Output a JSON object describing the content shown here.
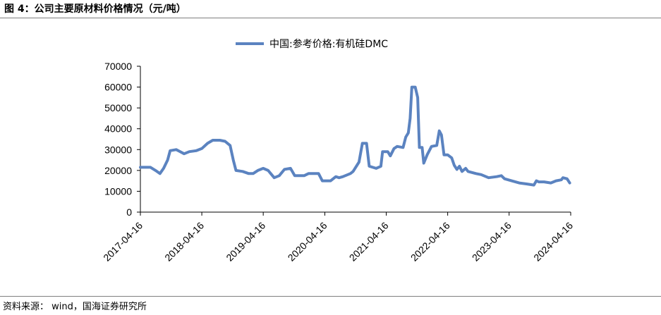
{
  "figure": {
    "title": "图 4：公司主要原材料价格情况（元/吨）",
    "source": "资料来源： wind，国海证券研究所"
  },
  "colors": {
    "series": "#5b83c0",
    "axis": "#000000",
    "rule": "#7f7f7f"
  },
  "chart_data": {
    "type": "line",
    "title": "",
    "xlabel": "",
    "ylabel": "",
    "ylim": [
      0,
      70000
    ],
    "yticks": [
      "0",
      "10000",
      "20000",
      "30000",
      "40000",
      "50000",
      "60000",
      "70000"
    ],
    "xlim": [
      "2017-04-16",
      "2024-04-16"
    ],
    "xticks": [
      "2017-04-16",
      "2018-04-16",
      "2019-04-16",
      "2020-04-16",
      "2021-04-16",
      "2022-04-16",
      "2023-04-16",
      "2024-04-16"
    ],
    "grid": false,
    "legend": "top-center",
    "series": [
      {
        "name": "中国:参考价格:有机硅DMC",
        "points": [
          [
            "2017-04-16",
            21500
          ],
          [
            "2017-06-15",
            21500
          ],
          [
            "2017-07-15",
            20000
          ],
          [
            "2017-08-10",
            18500
          ],
          [
            "2017-09-01",
            21000
          ],
          [
            "2017-09-25",
            25000
          ],
          [
            "2017-10-10",
            29500
          ],
          [
            "2017-11-15",
            30000
          ],
          [
            "2018-01-01",
            28000
          ],
          [
            "2018-02-01",
            29000
          ],
          [
            "2018-03-15",
            29500
          ],
          [
            "2018-04-16",
            30500
          ],
          [
            "2018-05-20",
            33000
          ],
          [
            "2018-06-20",
            34500
          ],
          [
            "2018-08-01",
            34500
          ],
          [
            "2018-09-01",
            34000
          ],
          [
            "2018-10-01",
            32000
          ],
          [
            "2018-10-20",
            25000
          ],
          [
            "2018-11-05",
            20000
          ],
          [
            "2018-12-15",
            19500
          ],
          [
            "2019-01-20",
            18500
          ],
          [
            "2019-02-15",
            18500
          ],
          [
            "2019-03-15",
            20000
          ],
          [
            "2019-04-16",
            21000
          ],
          [
            "2019-05-15",
            20000
          ],
          [
            "2019-06-20",
            16500
          ],
          [
            "2019-07-20",
            17500
          ],
          [
            "2019-08-20",
            20500
          ],
          [
            "2019-09-25",
            21000
          ],
          [
            "2019-10-20",
            17500
          ],
          [
            "2019-12-15",
            17500
          ],
          [
            "2020-01-10",
            18500
          ],
          [
            "2020-03-10",
            18500
          ],
          [
            "2020-04-01",
            15000
          ],
          [
            "2020-05-20",
            15000
          ],
          [
            "2020-06-20",
            17000
          ],
          [
            "2020-07-10",
            16500
          ],
          [
            "2020-08-01",
            17000
          ],
          [
            "2020-09-15",
            18500
          ],
          [
            "2020-10-01",
            19500
          ],
          [
            "2020-11-05",
            24000
          ],
          [
            "2020-11-25",
            33000
          ],
          [
            "2020-12-20",
            33000
          ],
          [
            "2021-01-05",
            22000
          ],
          [
            "2021-02-15",
            21000
          ],
          [
            "2021-03-15",
            22000
          ],
          [
            "2021-03-25",
            29000
          ],
          [
            "2021-04-25",
            29000
          ],
          [
            "2021-05-10",
            27000
          ],
          [
            "2021-06-01",
            30500
          ],
          [
            "2021-06-20",
            31500
          ],
          [
            "2021-07-25",
            31000
          ],
          [
            "2021-08-10",
            36000
          ],
          [
            "2021-08-25",
            38000
          ],
          [
            "2021-09-05",
            45000
          ],
          [
            "2021-09-15",
            60000
          ],
          [
            "2021-10-05",
            60000
          ],
          [
            "2021-10-20",
            55000
          ],
          [
            "2021-10-30",
            31000
          ],
          [
            "2021-11-15",
            31000
          ],
          [
            "2021-11-25",
            23500
          ],
          [
            "2021-12-15",
            27500
          ],
          [
            "2022-01-10",
            31500
          ],
          [
            "2022-02-10",
            32000
          ],
          [
            "2022-02-25",
            39000
          ],
          [
            "2022-03-10",
            37000
          ],
          [
            "2022-03-25",
            27500
          ],
          [
            "2022-04-16",
            27500
          ],
          [
            "2022-05-10",
            26000
          ],
          [
            "2022-05-25",
            22500
          ],
          [
            "2022-06-10",
            20500
          ],
          [
            "2022-06-25",
            22000
          ],
          [
            "2022-07-10",
            19500
          ],
          [
            "2022-08-01",
            21000
          ],
          [
            "2022-08-15",
            19500
          ],
          [
            "2022-10-01",
            18500
          ],
          [
            "2022-11-01",
            18000
          ],
          [
            "2022-12-15",
            16500
          ],
          [
            "2023-02-01",
            17000
          ],
          [
            "2023-03-01",
            17500
          ],
          [
            "2023-03-20",
            16000
          ],
          [
            "2023-05-01",
            15000
          ],
          [
            "2023-06-15",
            14000
          ],
          [
            "2023-08-01",
            13500
          ],
          [
            "2023-09-10",
            13000
          ],
          [
            "2023-09-25",
            15000
          ],
          [
            "2023-10-10",
            14500
          ],
          [
            "2023-11-10",
            14500
          ],
          [
            "2023-12-20",
            14000
          ],
          [
            "2024-01-20",
            15000
          ],
          [
            "2024-02-20",
            15500
          ],
          [
            "2024-03-01",
            16500
          ],
          [
            "2024-03-25",
            16000
          ],
          [
            "2024-04-10",
            14000
          ]
        ]
      }
    ]
  }
}
